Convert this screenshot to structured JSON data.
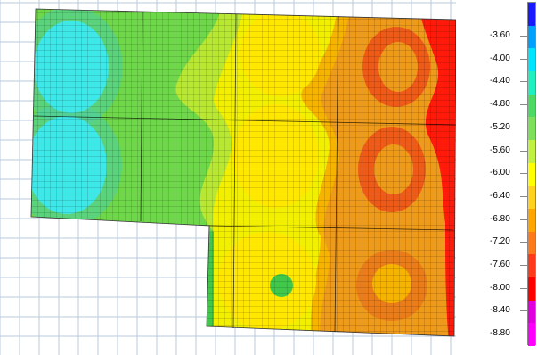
{
  "legend": {
    "ticks": [
      "-3.60",
      "-4.00",
      "-4.40",
      "-4.80",
      "-5.20",
      "-5.60",
      "-6.00",
      "-6.40",
      "-6.80",
      "-7.20",
      "-7.60",
      "-8.00",
      "-8.40",
      "-8.80"
    ],
    "colors": [
      "#1a1aff",
      "#00a0ff",
      "#00e5ff",
      "#20f0c0",
      "#4cd964",
      "#7ee05a",
      "#c0f040",
      "#ffff00",
      "#ffd21e",
      "#ffa500",
      "#ff7a1a",
      "#ff3a1a",
      "#ff0000",
      "#e000e0",
      "#ff00ff"
    ]
  },
  "plot": {
    "colors": {
      "cyan": "#3fe8e8",
      "teal": "#4ad0a6",
      "green1": "#40c84a",
      "green2": "#6fd84a",
      "lime": "#b8e834",
      "yellow": "#f2f000",
      "yellow2": "#ffe700",
      "orange1": "#f6b400",
      "orange2": "#ee9a1a",
      "orange3": "#ea7d1a",
      "red1": "#ee5a18",
      "red2": "#ff1a0a"
    }
  }
}
